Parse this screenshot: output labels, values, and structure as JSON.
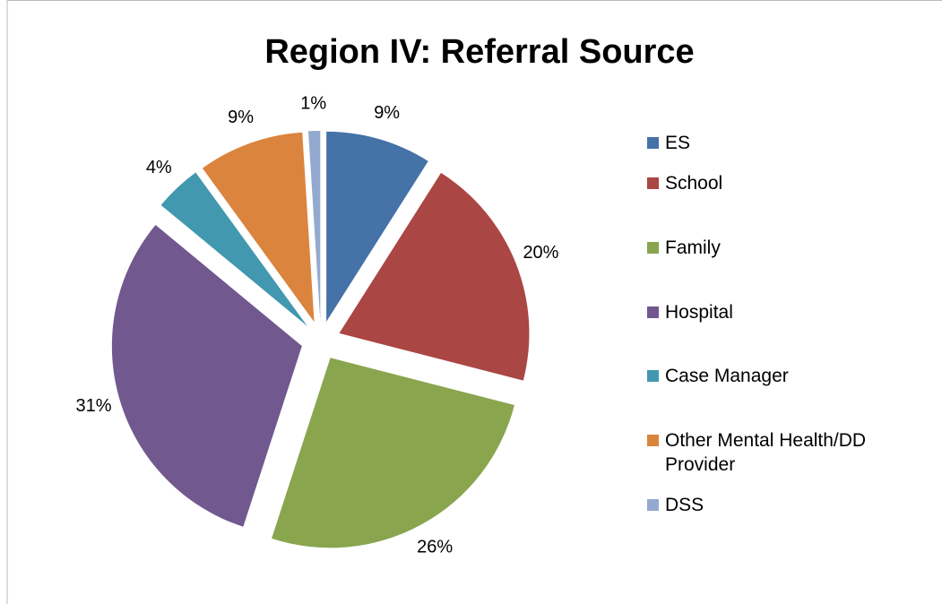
{
  "chart_data": {
    "type": "pie",
    "title": "Region IV: Referral Source",
    "categories": [
      "ES",
      "School",
      "Family",
      "Hospital",
      "Case Manager",
      "Other Mental Health/DD Provider",
      "DSS"
    ],
    "values": [
      9,
      20,
      26,
      31,
      4,
      9,
      1
    ],
    "value_labels": [
      "9%",
      "20%",
      "26%",
      "31%",
      "4%",
      "9%",
      "1%"
    ],
    "colors": [
      "#4572a7",
      "#aa4643",
      "#89a54e",
      "#71588f",
      "#4198af",
      "#db843d",
      "#93a9cf"
    ],
    "legend": "right"
  }
}
